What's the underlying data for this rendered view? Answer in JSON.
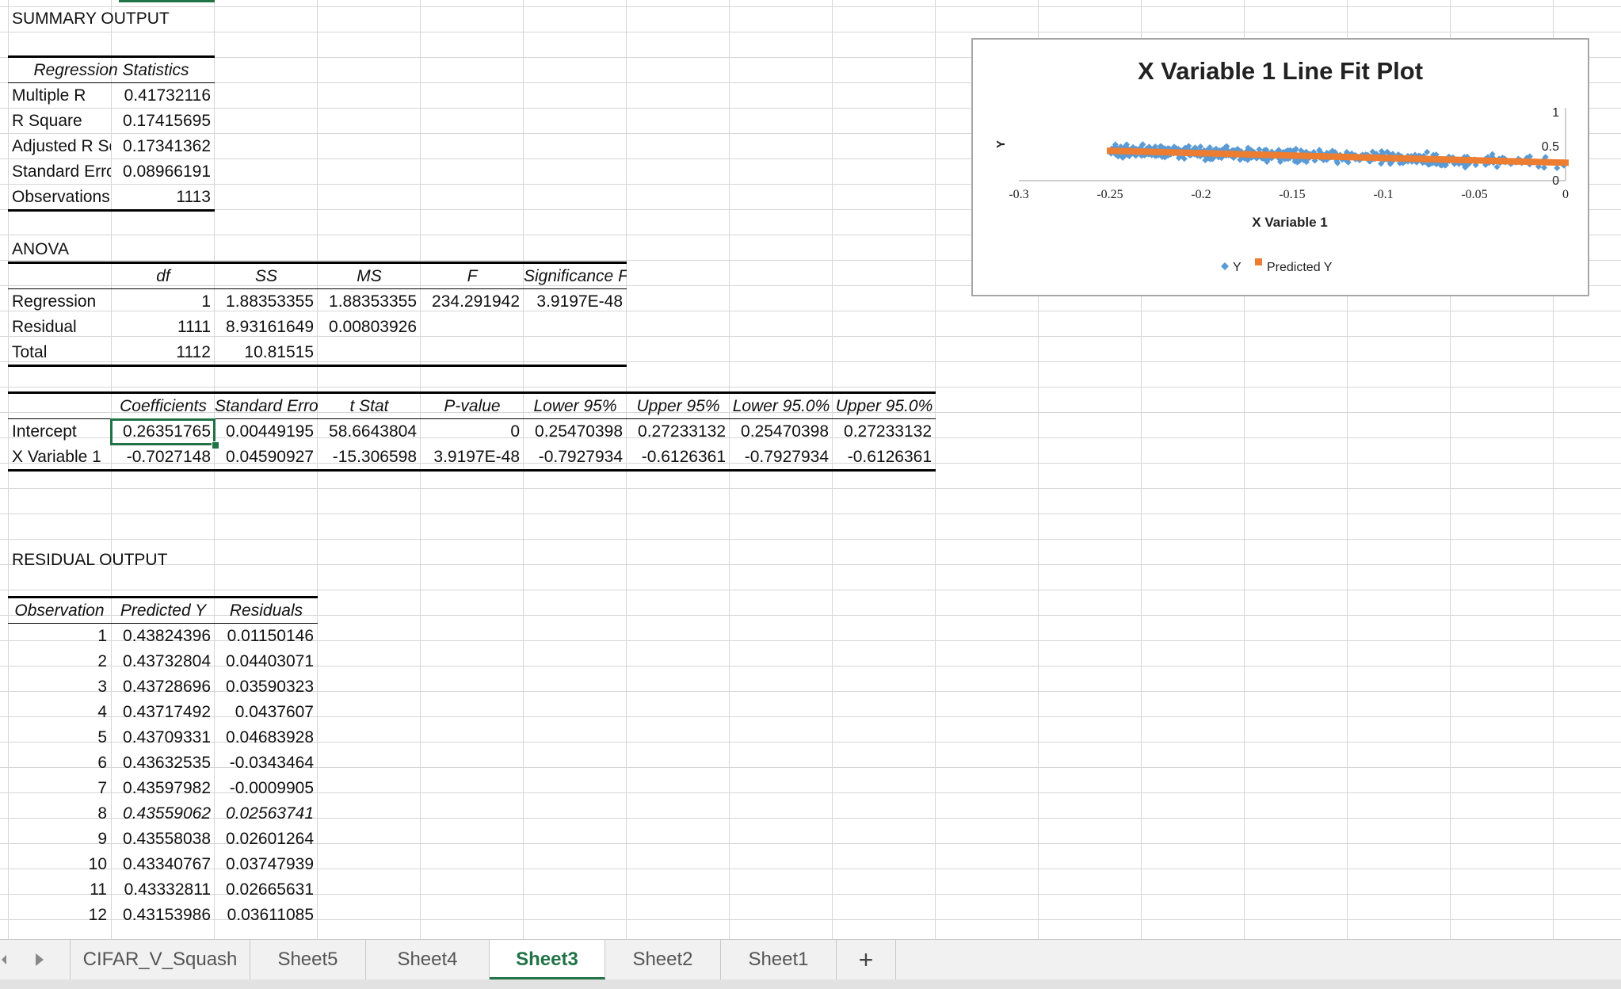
{
  "summary": {
    "title": "SUMMARY OUTPUT",
    "reg_stats_header": "Regression Statistics",
    "rows": [
      {
        "label": "Multiple R",
        "value": "0.41732116"
      },
      {
        "label": "R Square",
        "value": "0.17415695"
      },
      {
        "label": "Adjusted R Sq",
        "value": "0.17341362"
      },
      {
        "label": "Standard Error",
        "value": "0.08966191"
      },
      {
        "label": "Observations",
        "value": "1113"
      }
    ]
  },
  "anova": {
    "title": "ANOVA",
    "headers": [
      "df",
      "SS",
      "MS",
      "F",
      "Significance F"
    ],
    "rows": [
      {
        "label": "Regression",
        "df": "1",
        "ss": "1.88353355",
        "ms": "1.88353355",
        "f": "234.291942",
        "sig": "3.9197E-48"
      },
      {
        "label": "Residual",
        "df": "1111",
        "ss": "8.93161649",
        "ms": "0.00803926",
        "f": "",
        "sig": ""
      },
      {
        "label": "Total",
        "df": "1112",
        "ss": "10.81515",
        "ms": "",
        "f": "",
        "sig": ""
      }
    ]
  },
  "coef": {
    "headers": [
      "Coefficients",
      "Standard Error",
      "t Stat",
      "P-value",
      "Lower 95%",
      "Upper 95%",
      "Lower 95.0%",
      "Upper 95.0%"
    ],
    "rows": [
      {
        "label": "Intercept",
        "vals": [
          "0.26351765",
          "0.00449195",
          "58.6643804",
          "0",
          "0.25470398",
          "0.27233132",
          "0.25470398",
          "0.27233132"
        ]
      },
      {
        "label": "X Variable 1",
        "vals": [
          "-0.7027148",
          "0.04590927",
          "-15.306598",
          "3.9197E-48",
          "-0.7927934",
          "-0.6126361",
          "-0.7927934",
          "-0.6126361"
        ]
      }
    ]
  },
  "residual": {
    "title": "RESIDUAL OUTPUT",
    "headers": [
      "Observation",
      "Predicted Y",
      "Residuals"
    ],
    "rows": [
      [
        "1",
        "0.43824396",
        "0.01150146"
      ],
      [
        "2",
        "0.43732804",
        "0.04403071"
      ],
      [
        "3",
        "0.43728696",
        "0.03590323"
      ],
      [
        "4",
        "0.43717492",
        "0.0437607"
      ],
      [
        "5",
        "0.43709331",
        "0.04683928"
      ],
      [
        "6",
        "0.43632535",
        "-0.0343464"
      ],
      [
        "7",
        "0.43597982",
        "-0.0009905"
      ],
      [
        "8",
        "0.43559062",
        "0.02563741"
      ],
      [
        "9",
        "0.43558038",
        "0.02601264"
      ],
      [
        "10",
        "0.43340767",
        "0.03747939"
      ],
      [
        "11",
        "0.43332811",
        "0.02665631"
      ],
      [
        "12",
        "0.43153986",
        "0.03611085"
      ]
    ]
  },
  "chart_data": {
    "type": "scatter",
    "title": "X Variable 1 Line Fit  Plot",
    "xlabel": "X Variable 1",
    "ylabel": "Y",
    "xlim": [
      -0.3,
      0
    ],
    "ylim": [
      0,
      1
    ],
    "xticks": [
      "-0.3",
      "-0.25",
      "-0.2",
      "-0.15",
      "-0.1",
      "-0.05",
      "0"
    ],
    "yticks": [
      "0",
      "0.5",
      "1"
    ],
    "legend_position": "bottom",
    "series": [
      {
        "name": "Y",
        "color": "#5b9bd5",
        "marker": "diamond",
        "x_range": [
          -0.25,
          0
        ],
        "y_mean_at_x_min": 0.44,
        "y_mean_at_x_max": 0.26,
        "spread": 0.09,
        "count": 1113
      },
      {
        "name": "Predicted Y",
        "color": "#ed7d31",
        "marker": "square",
        "intercept": 0.26351765,
        "slope": -0.7027148
      }
    ]
  },
  "tabs": {
    "items": [
      "CIFAR_V_Squash",
      "Sheet5",
      "Sheet4",
      "Sheet3",
      "Sheet2",
      "Sheet1"
    ],
    "active": "Sheet3",
    "add_label": "+"
  }
}
